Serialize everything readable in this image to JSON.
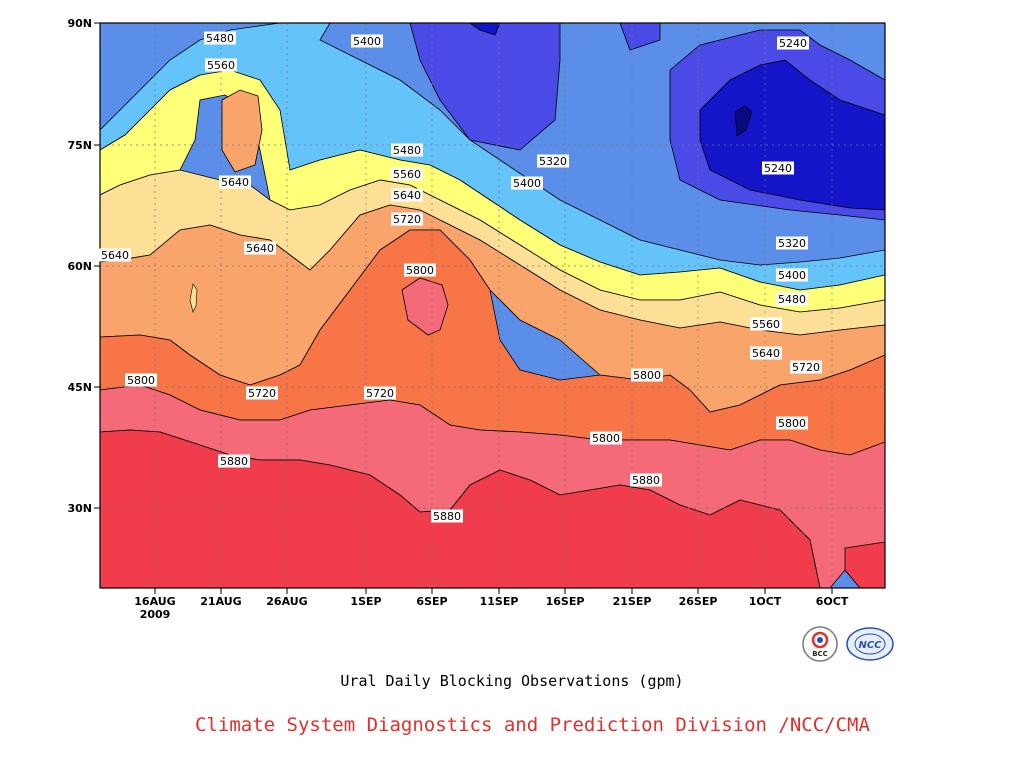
{
  "caption": "Ural Daily Blocking Observations (gpm)",
  "credit": "Climate System Diagnostics and Prediction Division /NCC/CMA",
  "logos": {
    "left_text": "BCC",
    "right_text": "NCC"
  },
  "chart_data": {
    "type": "heatmap",
    "title": "",
    "xlabel": "",
    "ylabel": "",
    "x_ticks": [
      {
        "label": "16AUG",
        "sublabel": "2009"
      },
      {
        "label": "21AUG"
      },
      {
        "label": "26AUG"
      },
      {
        "label": "1SEP"
      },
      {
        "label": "6SEP"
      },
      {
        "label": "11SEP"
      },
      {
        "label": "16SEP"
      },
      {
        "label": "21SEP"
      },
      {
        "label": "26SEP"
      },
      {
        "label": "1OCT"
      },
      {
        "label": "6OCT"
      }
    ],
    "y_ticks": [
      "90N",
      "75N",
      "60N",
      "45N",
      "30N"
    ],
    "ylim": [
      20,
      90
    ],
    "grid": true,
    "contour_levels": [
      5240,
      5320,
      5400,
      5480,
      5560,
      5640,
      5720,
      5800,
      5880
    ],
    "fill_colors": {
      "below_5240": "#1414c8",
      "5240_5320": "#4a4ae6",
      "5320_5400": "#5a8ee8",
      "5400_5480": "#64c4fa",
      "5480_5560": "#ffff78",
      "5560_5640": "#fde096",
      "5640_5720": "#f8a46a",
      "5720_5800": "#f77546",
      "5800_5880": "#f46a78",
      "above_5880": "#f03c4b"
    },
    "contour_labels": [
      "5480",
      "5400",
      "5240",
      "5560",
      "5640",
      "5480",
      "5560",
      "5640",
      "5320",
      "5400",
      "5240",
      "5720",
      "5640",
      "5640",
      "5320",
      "5800",
      "5400",
      "5480",
      "5560",
      "5640",
      "5800",
      "5720",
      "5720",
      "5800",
      "5720",
      "5800",
      "5800",
      "5880",
      "5880",
      "5880"
    ]
  }
}
